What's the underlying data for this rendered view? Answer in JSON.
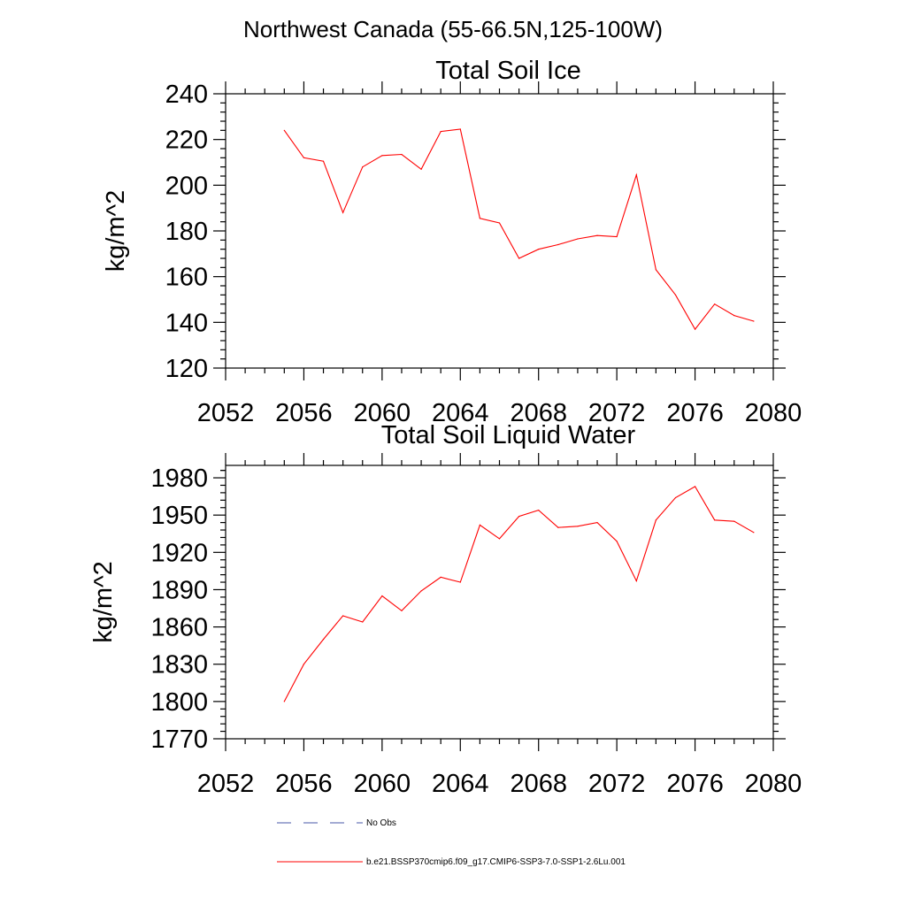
{
  "figure_title": "Northwest Canada (55-66.5N,125-100W)",
  "legend": {
    "obs_label": "No Obs",
    "model_label": "b.e21.BSSP370cmip6.f09_g17.CMIP6-SSP3-7.0-SSP1-2.6Lu.001",
    "obs_color": "#4a5aa8",
    "model_color": "#ff0000"
  },
  "chart_data": [
    {
      "type": "line",
      "title": "Total Soil Ice",
      "xlabel": "",
      "ylabel": "kg/m^2",
      "xlim": [
        2052,
        2080
      ],
      "ylim": [
        120,
        240
      ],
      "x_ticks": [
        2052,
        2056,
        2060,
        2064,
        2068,
        2072,
        2076,
        2080
      ],
      "y_ticks": [
        120,
        140,
        160,
        180,
        200,
        220,
        240
      ],
      "grid": false,
      "series": [
        {
          "color": "#ff0000",
          "x": [
            2055,
            2056,
            2057,
            2058,
            2059,
            2060,
            2061,
            2062,
            2063,
            2064,
            2065,
            2066,
            2067,
            2068,
            2069,
            2070,
            2071,
            2072,
            2073,
            2074,
            2075,
            2076,
            2077,
            2078,
            2079
          ],
          "values": [
            224,
            212,
            210.5,
            188,
            208,
            213,
            213.5,
            207,
            223.5,
            224.5,
            185.5,
            183.5,
            168,
            172,
            174,
            176.5,
            178,
            177.5,
            204.5,
            163,
            152,
            137,
            148,
            143,
            140.5
          ]
        }
      ]
    },
    {
      "type": "line",
      "title": "Total Soil Liquid Water",
      "xlabel": "",
      "ylabel": "kg/m^2",
      "xlim": [
        2052,
        2080
      ],
      "ylim": [
        1770,
        1990
      ],
      "x_ticks": [
        2052,
        2056,
        2060,
        2064,
        2068,
        2072,
        2076,
        2080
      ],
      "y_ticks": [
        1770,
        1800,
        1830,
        1860,
        1890,
        1920,
        1950,
        1980
      ],
      "grid": false,
      "series": [
        {
          "color": "#ff0000",
          "x": [
            2055,
            2056,
            2057,
            2058,
            2059,
            2060,
            2061,
            2062,
            2063,
            2064,
            2065,
            2066,
            2067,
            2068,
            2069,
            2070,
            2071,
            2072,
            2073,
            2074,
            2075,
            2076,
            2077,
            2078,
            2079
          ],
          "values": [
            1800,
            1830,
            1850,
            1869,
            1864,
            1885,
            1873,
            1889,
            1900,
            1896,
            1942,
            1931,
            1949,
            1954,
            1940,
            1941,
            1944,
            1929,
            1897,
            1946,
            1964,
            1973,
            1946,
            1945,
            1936
          ]
        }
      ]
    }
  ]
}
